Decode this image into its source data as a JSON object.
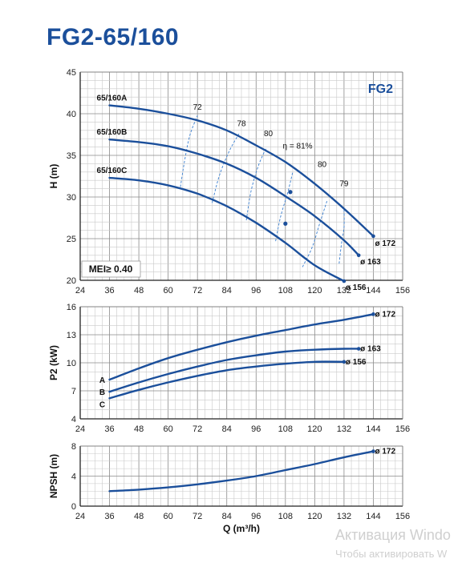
{
  "title": "FG2-65/160",
  "watermark": {
    "line1": "Активация Windo",
    "line2": "Чтобы активировать W"
  },
  "chart_data": [
    {
      "type": "line",
      "tag": "FG2",
      "ylabel": "H (m)",
      "xlabel": "",
      "xlim": [
        24,
        156
      ],
      "ylim": [
        20,
        45
      ],
      "xticks": [
        24,
        36,
        48,
        60,
        72,
        84,
        96,
        108,
        120,
        132,
        144,
        156
      ],
      "yticks": [
        20,
        25,
        30,
        35,
        40,
        45
      ],
      "grid": true,
      "badge": "MEI≥ 0.40",
      "series": [
        {
          "name": "65/160A",
          "end_label": "ø 172",
          "x": [
            36,
            48,
            60,
            72,
            84,
            96,
            108,
            120,
            132,
            144
          ],
          "y": [
            41.0,
            40.6,
            40.0,
            39.2,
            38.0,
            36.2,
            34.2,
            31.6,
            28.6,
            25.3
          ]
        },
        {
          "name": "65/160B",
          "end_label": "ø 163",
          "x": [
            36,
            48,
            60,
            72,
            84,
            96,
            108,
            120,
            132,
            138
          ],
          "y": [
            36.9,
            36.6,
            36.1,
            35.2,
            34.0,
            32.3,
            30.1,
            27.7,
            24.8,
            23.0
          ]
        },
        {
          "name": "65/160C",
          "end_label": "ø 156",
          "x": [
            36,
            48,
            60,
            72,
            84,
            96,
            108,
            120,
            132
          ],
          "y": [
            32.3,
            32.0,
            31.4,
            30.4,
            28.9,
            26.9,
            24.5,
            21.8,
            19.9
          ]
        }
      ],
      "efficiency_labels": [
        {
          "text": "72",
          "x": 72,
          "y": 40.5
        },
        {
          "text": "78",
          "x": 90,
          "y": 38.5
        },
        {
          "text": "80",
          "x": 101,
          "y": 37.3
        },
        {
          "text": "η = 81%",
          "x": 113,
          "y": 35.8
        },
        {
          "text": "80",
          "x": 123,
          "y": 33.6
        },
        {
          "text": "79",
          "x": 132,
          "y": 31.3
        }
      ],
      "efficiency_lines": [
        {
          "x": [
            65,
            67,
            69,
            72
          ],
          "y": [
            31.2,
            34.8,
            37.5,
            39.8
          ]
        },
        {
          "x": [
            78,
            81,
            85,
            89
          ],
          "y": [
            29.3,
            32.6,
            35.5,
            37.6
          ]
        },
        {
          "x": [
            92,
            94,
            97,
            100
          ],
          "y": [
            27.2,
            30.8,
            33.8,
            35.8
          ]
        },
        {
          "x": [
            104,
            106,
            109,
            111
          ],
          "y": [
            24.7,
            27.6,
            30.6,
            33.0
          ]
        },
        {
          "x": [
            115,
            119,
            122,
            125
          ],
          "y": [
            21.6,
            24.0,
            26.8,
            29.5
          ]
        },
        {
          "x": [
            130,
            131,
            132,
            132
          ],
          "y": [
            22.0,
            24.5,
            26.4,
            28.5
          ]
        }
      ],
      "bep_points": [
        {
          "x": 110,
          "y": 30.6
        },
        {
          "x": 108,
          "y": 26.8
        }
      ]
    },
    {
      "type": "line",
      "ylabel": "P2 (kW)",
      "xlabel": "",
      "xlim": [
        24,
        156
      ],
      "ylim": [
        4,
        16
      ],
      "xticks": [
        24,
        36,
        48,
        60,
        72,
        84,
        96,
        108,
        120,
        132,
        144,
        156
      ],
      "yticks": [
        4,
        7,
        10,
        13,
        16
      ],
      "grid": true,
      "series": [
        {
          "name": "A",
          "end_label": "ø 172",
          "x": [
            36,
            48,
            60,
            72,
            84,
            96,
            108,
            120,
            132,
            144
          ],
          "y": [
            8.2,
            9.4,
            10.5,
            11.4,
            12.2,
            12.9,
            13.5,
            14.1,
            14.6,
            15.2
          ]
        },
        {
          "name": "B",
          "end_label": "ø 163",
          "x": [
            36,
            48,
            60,
            72,
            84,
            96,
            108,
            120,
            132,
            138
          ],
          "y": [
            6.9,
            7.9,
            8.8,
            9.6,
            10.3,
            10.8,
            11.2,
            11.4,
            11.5,
            11.5
          ]
        },
        {
          "name": "C",
          "end_label": "ø 156",
          "x": [
            36,
            48,
            60,
            72,
            84,
            96,
            108,
            120,
            132
          ],
          "y": [
            6.2,
            7.1,
            7.9,
            8.6,
            9.2,
            9.6,
            9.9,
            10.1,
            10.1
          ]
        }
      ]
    },
    {
      "type": "line",
      "ylabel": "NPSH (m)",
      "xlabel": "Q (m³/h)",
      "xlim": [
        24,
        156
      ],
      "ylim": [
        0,
        8
      ],
      "xticks": [
        24,
        36,
        48,
        60,
        72,
        84,
        96,
        108,
        120,
        132,
        144,
        156
      ],
      "yticks": [
        0,
        4,
        8
      ],
      "grid": true,
      "series": [
        {
          "name": "",
          "end_label": "ø 172",
          "x": [
            36,
            48,
            60,
            72,
            84,
            96,
            108,
            120,
            132,
            144
          ],
          "y": [
            2.0,
            2.2,
            2.5,
            2.9,
            3.4,
            4.0,
            4.8,
            5.6,
            6.5,
            7.3
          ]
        }
      ]
    }
  ]
}
